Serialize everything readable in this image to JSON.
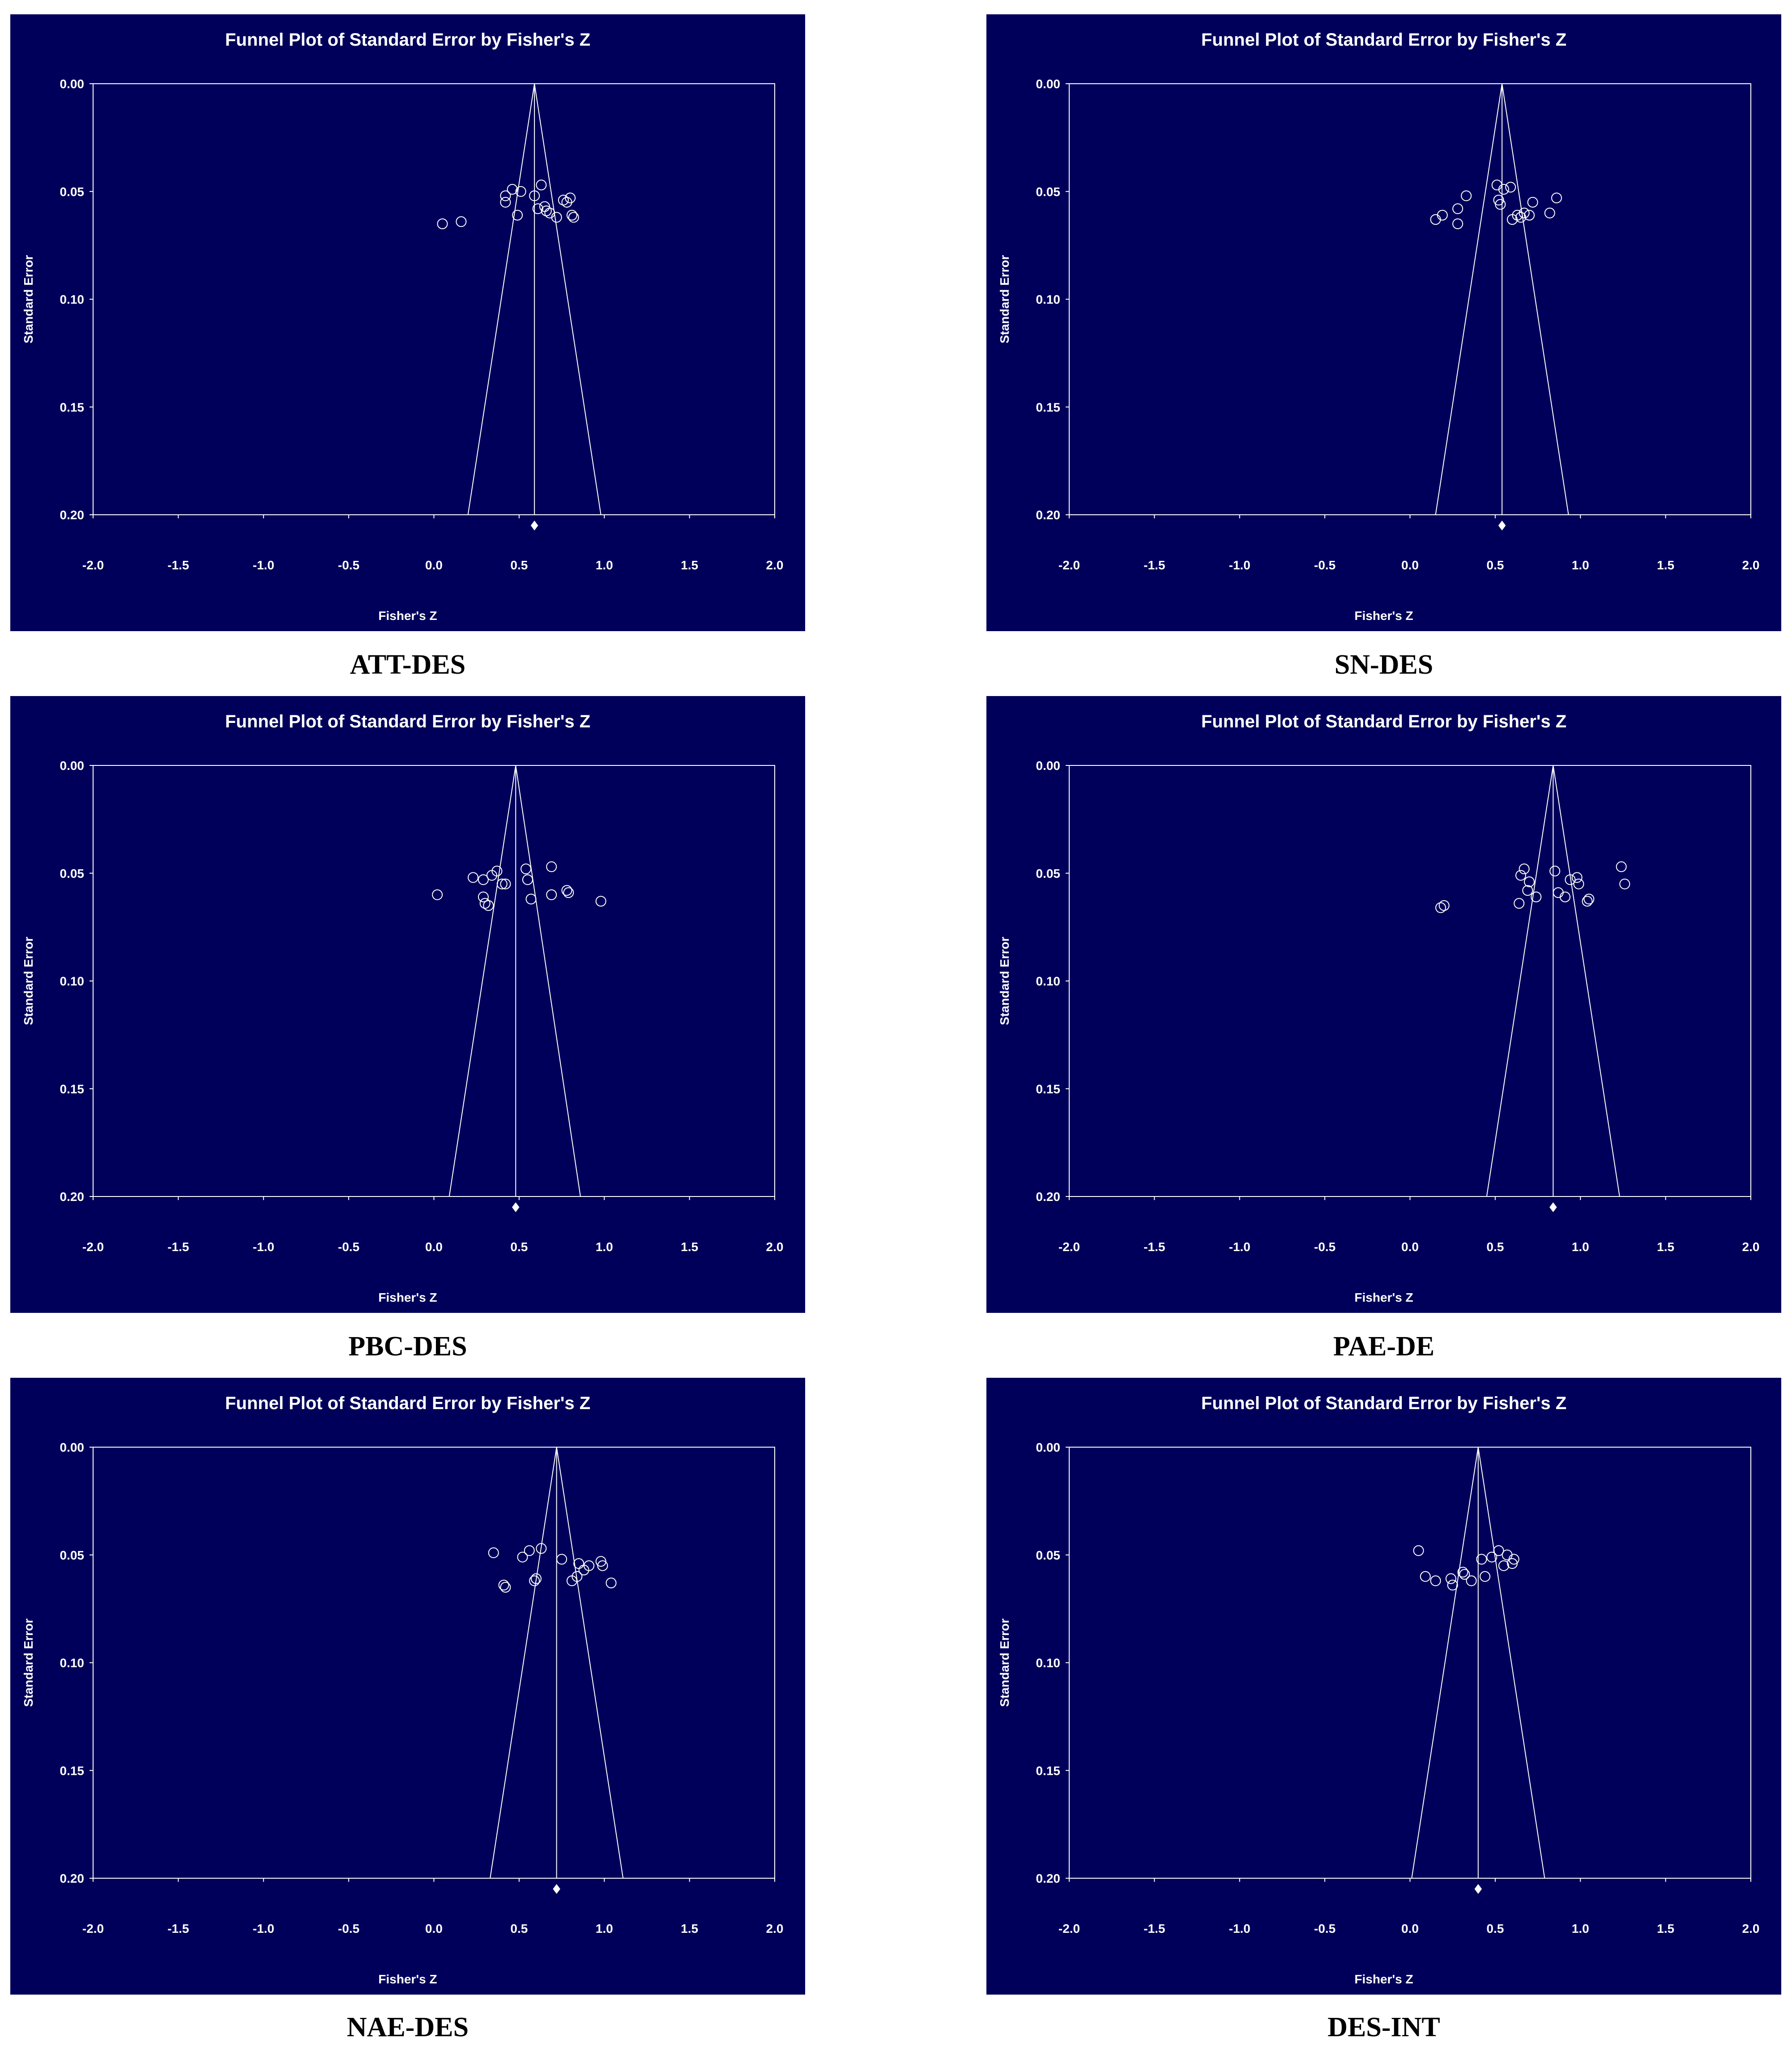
{
  "colors": {
    "background": "#00005a",
    "foreground": "#ffffff",
    "caption": "#000000"
  },
  "chart_data": [
    {
      "type": "scatter",
      "title": "Funnel Plot of Standard Error by Fisher's Z",
      "xlabel": "Fisher's Z",
      "ylabel": "Standard Error",
      "caption": "ATT-DES",
      "xlim": [
        -2.0,
        2.0
      ],
      "ylim": [
        0.0,
        0.2
      ],
      "y_inverted": true,
      "xticks": [
        "-2.0",
        "-1.5",
        "-1.0",
        "-0.5",
        "0.0",
        "0.5",
        "1.0",
        "1.5",
        "2.0"
      ],
      "yticks": [
        "0.00",
        "0.05",
        "0.10",
        "0.15",
        "0.20"
      ],
      "summary_effect": 0.59,
      "funnel_base": [
        0.2,
        0.98
      ],
      "x": [
        0.05,
        0.16,
        0.42,
        0.42,
        0.46,
        0.49,
        0.51,
        0.59,
        0.61,
        0.63,
        0.65,
        0.66,
        0.68,
        0.72,
        0.76,
        0.78,
        0.8,
        0.81,
        0.82
      ],
      "y": [
        0.065,
        0.064,
        0.052,
        0.055,
        0.049,
        0.061,
        0.05,
        0.052,
        0.058,
        0.047,
        0.057,
        0.059,
        0.06,
        0.062,
        0.054,
        0.055,
        0.053,
        0.061,
        0.062
      ]
    },
    {
      "type": "scatter",
      "title": "Funnel Plot of Standard Error by Fisher's Z",
      "xlabel": "Fisher's Z",
      "ylabel": "Standard Error",
      "caption": "SN-DES",
      "xlim": [
        -2.0,
        2.0
      ],
      "ylim": [
        0.0,
        0.2
      ],
      "y_inverted": true,
      "xticks": [
        "-2.0",
        "-1.5",
        "-1.0",
        "-0.5",
        "0.0",
        "0.5",
        "1.0",
        "1.5",
        "2.0"
      ],
      "yticks": [
        "0.00",
        "0.05",
        "0.10",
        "0.15",
        "0.20"
      ],
      "summary_effect": 0.54,
      "funnel_base": [
        0.15,
        0.93
      ],
      "x": [
        0.15,
        0.19,
        0.28,
        0.28,
        0.33,
        0.51,
        0.52,
        0.53,
        0.55,
        0.59,
        0.6,
        0.63,
        0.65,
        0.67,
        0.7,
        0.72,
        0.82,
        0.86
      ],
      "y": [
        0.063,
        0.061,
        0.058,
        0.065,
        0.052,
        0.047,
        0.054,
        0.056,
        0.049,
        0.048,
        0.063,
        0.061,
        0.062,
        0.06,
        0.061,
        0.055,
        0.06,
        0.053
      ]
    },
    {
      "type": "scatter",
      "title": "Funnel Plot of Standard Error by Fisher's Z",
      "xlabel": "Fisher's Z",
      "ylabel": "Standard Error",
      "caption": "PBC-DES",
      "xlim": [
        -2.0,
        2.0
      ],
      "ylim": [
        0.0,
        0.2
      ],
      "y_inverted": true,
      "xticks": [
        "-2.0",
        "-1.5",
        "-1.0",
        "-0.5",
        "0.0",
        "0.5",
        "1.0",
        "1.5",
        "2.0"
      ],
      "yticks": [
        "0.00",
        "0.05",
        "0.10",
        "0.15",
        "0.20"
      ],
      "summary_effect": 0.48,
      "funnel_base": [
        0.09,
        0.86
      ],
      "x": [
        0.02,
        0.23,
        0.29,
        0.29,
        0.3,
        0.32,
        0.34,
        0.37,
        0.4,
        0.42,
        0.54,
        0.55,
        0.57,
        0.69,
        0.69,
        0.78,
        0.79,
        0.98
      ],
      "y": [
        0.06,
        0.052,
        0.061,
        0.053,
        0.064,
        0.065,
        0.051,
        0.049,
        0.055,
        0.055,
        0.048,
        0.053,
        0.062,
        0.047,
        0.06,
        0.058,
        0.059,
        0.063
      ]
    },
    {
      "type": "scatter",
      "title": "Funnel Plot of Standard Error by Fisher's Z",
      "xlabel": "Fisher's Z",
      "ylabel": "Standard Error",
      "caption": "PAE-DE",
      "xlim": [
        -2.0,
        2.0
      ],
      "ylim": [
        0.0,
        0.2
      ],
      "y_inverted": true,
      "xticks": [
        "-2.0",
        "-1.5",
        "-1.0",
        "-0.5",
        "0.0",
        "0.5",
        "1.0",
        "1.5",
        "2.0"
      ],
      "yticks": [
        "0.00",
        "0.05",
        "0.10",
        "0.15",
        "0.20"
      ],
      "summary_effect": 0.84,
      "funnel_base": [
        0.45,
        1.23
      ],
      "x": [
        0.18,
        0.2,
        0.64,
        0.65,
        0.67,
        0.69,
        0.7,
        0.74,
        0.85,
        0.87,
        0.91,
        0.94,
        0.98,
        0.99,
        1.04,
        1.05,
        1.24,
        1.26
      ],
      "y": [
        0.066,
        0.065,
        0.064,
        0.051,
        0.048,
        0.058,
        0.054,
        0.061,
        0.049,
        0.059,
        0.061,
        0.053,
        0.052,
        0.055,
        0.063,
        0.062,
        0.047,
        0.055
      ]
    },
    {
      "type": "scatter",
      "title": "Funnel Plot of Standard Error by Fisher's Z",
      "xlabel": "Fisher's Z",
      "ylabel": "Standard Error",
      "caption": "NAE-DES",
      "xlim": [
        -2.0,
        2.0
      ],
      "ylim": [
        0.0,
        0.2
      ],
      "y_inverted": true,
      "xticks": [
        "-2.0",
        "-1.5",
        "-1.0",
        "-0.5",
        "0.0",
        "0.5",
        "1.0",
        "1.5",
        "2.0"
      ],
      "yticks": [
        "0.00",
        "0.05",
        "0.10",
        "0.15",
        "0.20"
      ],
      "summary_effect": 0.72,
      "funnel_base": [
        0.33,
        1.11
      ],
      "x": [
        0.35,
        0.41,
        0.42,
        0.52,
        0.56,
        0.59,
        0.6,
        0.63,
        0.75,
        0.81,
        0.84,
        0.85,
        0.88,
        0.91,
        0.98,
        0.99,
        1.04
      ],
      "y": [
        0.049,
        0.064,
        0.065,
        0.051,
        0.048,
        0.062,
        0.061,
        0.047,
        0.052,
        0.062,
        0.06,
        0.054,
        0.057,
        0.055,
        0.053,
        0.055,
        0.063
      ]
    },
    {
      "type": "scatter",
      "title": "Funnel Plot of Standard Error by Fisher's Z",
      "xlabel": "Fisher's Z",
      "ylabel": "Standard Error",
      "caption": "DES-INT",
      "xlim": [
        -2.0,
        2.0
      ],
      "ylim": [
        0.0,
        0.2
      ],
      "y_inverted": true,
      "xticks": [
        "-2.0",
        "-1.5",
        "-1.0",
        "-0.5",
        "0.0",
        "0.5",
        "1.0",
        "1.5",
        "2.0"
      ],
      "yticks": [
        "0.00",
        "0.05",
        "0.10",
        "0.15",
        "0.20"
      ],
      "summary_effect": 0.4,
      "funnel_base": [
        0.01,
        0.79
      ],
      "x": [
        0.05,
        0.09,
        0.15,
        0.24,
        0.25,
        0.31,
        0.32,
        0.36,
        0.42,
        0.44,
        0.48,
        0.52,
        0.55,
        0.57,
        0.6,
        0.61
      ],
      "y": [
        0.048,
        0.06,
        0.062,
        0.061,
        0.064,
        0.058,
        0.059,
        0.062,
        0.052,
        0.06,
        0.051,
        0.048,
        0.055,
        0.05,
        0.054,
        0.052
      ]
    }
  ]
}
